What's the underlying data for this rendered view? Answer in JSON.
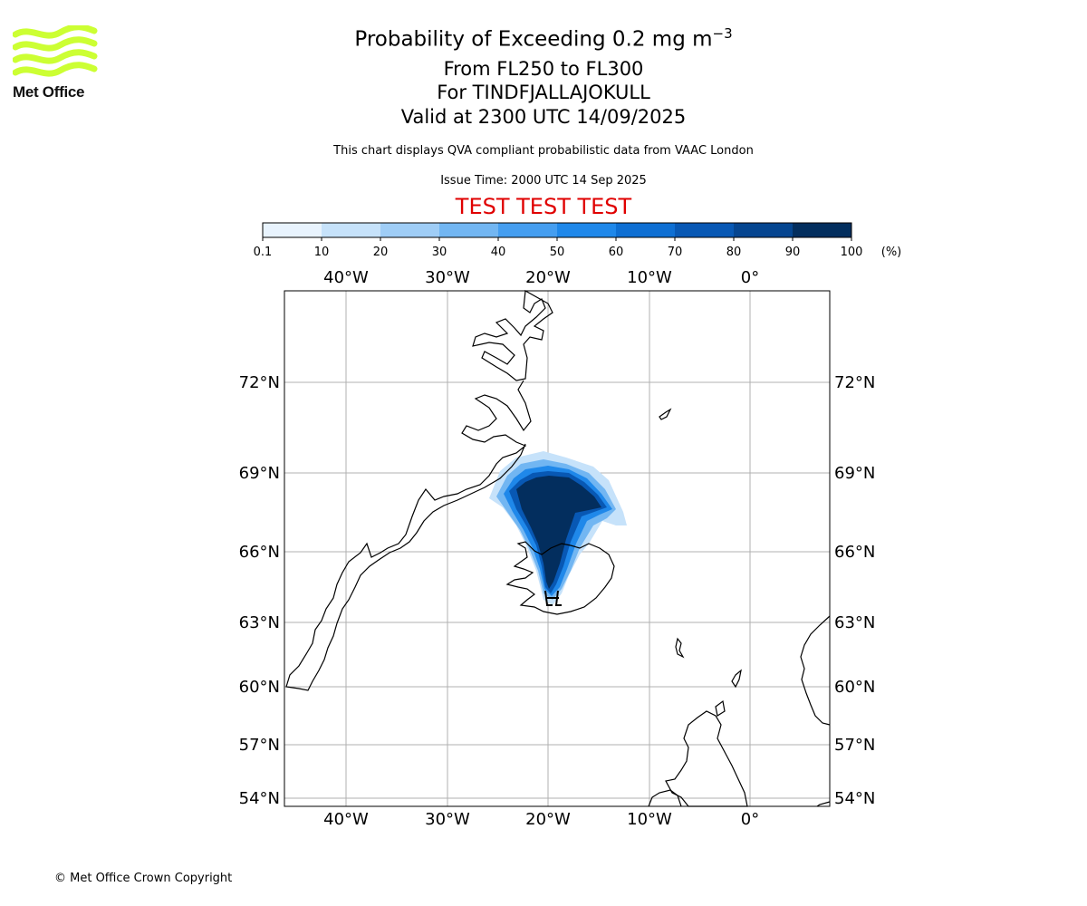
{
  "logo": {
    "text": "Met Office",
    "color": "#ccff33"
  },
  "title": {
    "main": "Probability of Exceeding 0.2 mg m",
    "main_sup": "−3",
    "levels": "From FL250 to FL300",
    "volcano": "For TINDFJALLAJOKULL",
    "valid": "Valid at 2300 UTC 14/09/2025"
  },
  "description": "This chart displays QVA compliant probabilistic data from VAAC London",
  "issue_time": "Issue Time: 2000 UTC 14 Sep 2025",
  "test_banner": "TEST TEST TEST",
  "colorbar": {
    "ticks": [
      "0.1",
      "10",
      "20",
      "30",
      "40",
      "50",
      "60",
      "70",
      "80",
      "90",
      "100"
    ],
    "unit": "(%)",
    "colors": [
      "#e8f3fd",
      "#c6e2fa",
      "#9fcdf6",
      "#72b6f2",
      "#459ef0",
      "#1f88ea",
      "#0e6fd3",
      "#0858b4",
      "#054590",
      "#032e5e"
    ]
  },
  "map": {
    "lon_labels": [
      "40°W",
      "30°W",
      "20°W",
      "10°W",
      "0°"
    ],
    "lat_labels": [
      "72°N",
      "69°N",
      "66°N",
      "63°N",
      "60°N",
      "57°N",
      "54°N"
    ]
  },
  "footer": "© Met Office Crown Copyright"
}
